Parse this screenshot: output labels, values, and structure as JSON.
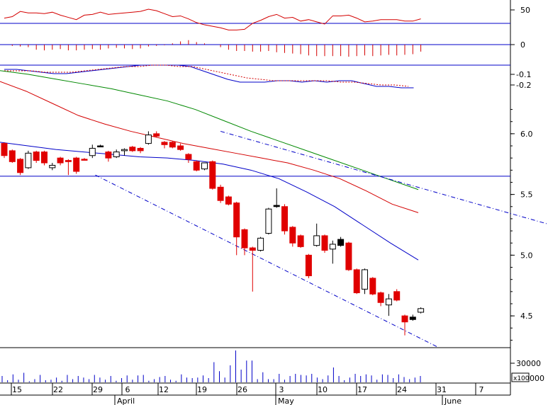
{
  "chart_data": {
    "type": "candlestick",
    "x_axis": {
      "day_labels": [
        "15",
        "22",
        "29",
        "6",
        "12",
        "19",
        "26",
        "3",
        "10",
        "17",
        "24",
        "31",
        "7"
      ],
      "month_labels": [
        "April",
        "May",
        "June"
      ]
    },
    "candles": [
      {
        "o": 5.92,
        "h": 5.93,
        "l": 5.8,
        "c": 5.82,
        "color": "red"
      },
      {
        "o": 5.86,
        "h": 5.87,
        "l": 5.76,
        "c": 5.77,
        "color": "red"
      },
      {
        "o": 5.79,
        "h": 5.8,
        "l": 5.66,
        "c": 5.68,
        "color": "red"
      },
      {
        "o": 5.72,
        "h": 5.86,
        "l": 5.71,
        "c": 5.84,
        "color": "white"
      },
      {
        "o": 5.85,
        "h": 5.86,
        "l": 5.76,
        "c": 5.78,
        "color": "red"
      },
      {
        "o": 5.85,
        "h": 5.86,
        "l": 5.74,
        "c": 5.76,
        "color": "red"
      },
      {
        "o": 5.74,
        "h": 5.76,
        "l": 5.7,
        "c": 5.72,
        "color": "white"
      },
      {
        "o": 5.8,
        "h": 5.81,
        "l": 5.74,
        "c": 5.76,
        "color": "red"
      },
      {
        "o": 5.77,
        "h": 5.79,
        "l": 5.66,
        "c": 5.78,
        "color": "red"
      },
      {
        "o": 5.8,
        "h": 5.81,
        "l": 5.67,
        "c": 5.69,
        "color": "red"
      },
      {
        "o": 5.79,
        "h": 5.8,
        "l": 5.78,
        "c": 5.79,
        "color": "red"
      },
      {
        "o": 5.82,
        "h": 5.91,
        "l": 5.8,
        "c": 5.88,
        "color": "white"
      },
      {
        "o": 5.9,
        "h": 5.91,
        "l": 5.89,
        "c": 5.9,
        "color": "black"
      },
      {
        "o": 5.85,
        "h": 5.86,
        "l": 5.77,
        "c": 5.8,
        "color": "red"
      },
      {
        "o": 5.81,
        "h": 5.87,
        "l": 5.8,
        "c": 5.85,
        "color": "white"
      },
      {
        "o": 5.86,
        "h": 5.88,
        "l": 5.82,
        "c": 5.87,
        "color": "white"
      },
      {
        "o": 5.89,
        "h": 5.9,
        "l": 5.85,
        "c": 5.86,
        "color": "red"
      },
      {
        "o": 5.88,
        "h": 5.89,
        "l": 5.84,
        "c": 5.86,
        "color": "red"
      },
      {
        "o": 5.92,
        "h": 6.02,
        "l": 5.91,
        "c": 5.99,
        "color": "white"
      },
      {
        "o": 6.0,
        "h": 6.02,
        "l": 5.97,
        "c": 5.98,
        "color": "red"
      },
      {
        "o": 5.93,
        "h": 5.94,
        "l": 5.88,
        "c": 5.91,
        "color": "red"
      },
      {
        "o": 5.93,
        "h": 5.94,
        "l": 5.88,
        "c": 5.89,
        "color": "red"
      },
      {
        "o": 5.9,
        "h": 5.92,
        "l": 5.86,
        "c": 5.87,
        "color": "red"
      },
      {
        "o": 5.83,
        "h": 5.84,
        "l": 5.76,
        "c": 5.79,
        "color": "red"
      },
      {
        "o": 5.77,
        "h": 5.78,
        "l": 5.69,
        "c": 5.7,
        "color": "red"
      },
      {
        "o": 5.71,
        "h": 5.76,
        "l": 5.7,
        "c": 5.76,
        "color": "white"
      },
      {
        "o": 5.77,
        "h": 5.78,
        "l": 5.54,
        "c": 5.55,
        "color": "red"
      },
      {
        "o": 5.56,
        "h": 5.58,
        "l": 5.43,
        "c": 5.45,
        "color": "red"
      },
      {
        "o": 5.48,
        "h": 5.49,
        "l": 5.41,
        "c": 5.42,
        "color": "red"
      },
      {
        "o": 5.43,
        "h": 5.44,
        "l": 5.0,
        "c": 5.15,
        "color": "red"
      },
      {
        "o": 5.21,
        "h": 5.22,
        "l": 5.0,
        "c": 5.06,
        "color": "red"
      },
      {
        "o": 5.06,
        "h": 5.07,
        "l": 4.7,
        "c": 5.04,
        "color": "red"
      },
      {
        "o": 5.04,
        "h": 5.15,
        "l": 5.03,
        "c": 5.14,
        "color": "white"
      },
      {
        "o": 5.18,
        "h": 5.39,
        "l": 5.17,
        "c": 5.38,
        "color": "white"
      },
      {
        "o": 5.4,
        "h": 5.55,
        "l": 5.39,
        "c": 5.41,
        "color": "black"
      },
      {
        "o": 5.4,
        "h": 5.42,
        "l": 5.17,
        "c": 5.2,
        "color": "red"
      },
      {
        "o": 5.23,
        "h": 5.24,
        "l": 5.07,
        "c": 5.1,
        "color": "red"
      },
      {
        "o": 5.16,
        "h": 5.17,
        "l": 5.06,
        "c": 5.07,
        "color": "red"
      },
      {
        "o": 5.0,
        "h": 5.01,
        "l": 4.81,
        "c": 4.83,
        "color": "red"
      },
      {
        "o": 5.08,
        "h": 5.26,
        "l": 5.07,
        "c": 5.16,
        "color": "white"
      },
      {
        "o": 5.16,
        "h": 5.17,
        "l": 5.02,
        "c": 5.04,
        "color": "red"
      },
      {
        "o": 5.05,
        "h": 5.12,
        "l": 4.93,
        "c": 5.09,
        "color": "white"
      },
      {
        "o": 5.08,
        "h": 5.15,
        "l": 5.07,
        "c": 5.13,
        "color": "black"
      },
      {
        "o": 5.1,
        "h": 5.11,
        "l": 4.87,
        "c": 4.88,
        "color": "red"
      },
      {
        "o": 4.88,
        "h": 4.89,
        "l": 4.68,
        "c": 4.69,
        "color": "red"
      },
      {
        "o": 4.72,
        "h": 4.89,
        "l": 4.68,
        "c": 4.88,
        "color": "white"
      },
      {
        "o": 4.81,
        "h": 4.82,
        "l": 4.67,
        "c": 4.68,
        "color": "red"
      },
      {
        "o": 4.69,
        "h": 4.7,
        "l": 4.58,
        "c": 4.61,
        "color": "red"
      },
      {
        "o": 4.64,
        "h": 4.68,
        "l": 4.5,
        "c": 4.59,
        "color": "white"
      },
      {
        "o": 4.7,
        "h": 4.72,
        "l": 4.62,
        "c": 4.63,
        "color": "red"
      },
      {
        "o": 4.5,
        "h": 4.51,
        "l": 4.34,
        "c": 4.45,
        "color": "red"
      },
      {
        "o": 4.49,
        "h": 4.51,
        "l": 4.46,
        "c": 4.47,
        "color": "black"
      },
      {
        "o": 4.53,
        "h": 4.57,
        "l": 4.52,
        "c": 4.56,
        "color": "white"
      }
    ],
    "price_axis": {
      "ticks": [
        "6.0",
        "5.5",
        "5.0",
        "4.5"
      ],
      "range": [
        4.25,
        6.25
      ]
    },
    "moving_averages": [
      {
        "color": "#0000c8",
        "points": [
          5.93,
          5.9,
          5.87,
          5.85,
          5.83,
          5.81,
          5.8,
          5.78,
          5.75,
          5.7,
          5.63,
          5.52,
          5.4,
          5.25,
          5.1,
          4.96
        ]
      },
      {
        "color": "#d40000",
        "points": [
          6.43,
          6.35,
          6.25,
          6.15,
          6.08,
          6.02,
          5.97,
          5.92,
          5.88,
          5.84,
          5.8,
          5.76,
          5.7,
          5.63,
          5.53,
          5.42,
          5.35
        ]
      },
      {
        "color": "#008800",
        "points": [
          6.52,
          6.49,
          6.45,
          6.41,
          6.37,
          6.32,
          6.27,
          6.2,
          6.11,
          6.02,
          5.94,
          5.86,
          5.78,
          5.7,
          5.62,
          5.54
        ]
      }
    ],
    "price_level_line": 5.65,
    "trend_channel": {
      "upper": [
        [
          27,
          6.02
        ],
        [
          89,
          4.53
        ]
      ],
      "lower": [
        [
          16.5,
          5.66
        ],
        [
          75,
          4.24
        ]
      ]
    },
    "rsi": {
      "axis_ticks": [
        "50"
      ],
      "level": 30,
      "color": "#d40000",
      "values": [
        38,
        40,
        47,
        45,
        45,
        44,
        46,
        42,
        39,
        36,
        42,
        43,
        46,
        43,
        44,
        45,
        46,
        47,
        50,
        48,
        44,
        40,
        41,
        37,
        32,
        29,
        27,
        25,
        22,
        22,
        23,
        31,
        35,
        40,
        43,
        38,
        39,
        34,
        36,
        33,
        30,
        41,
        41,
        42,
        38,
        33,
        34,
        36,
        36,
        36,
        34,
        34,
        37
      ]
    },
    "momentum": {
      "axis_ticks": [
        "0"
      ],
      "color": "#d40000",
      "values": [
        0,
        -2,
        -3,
        -4,
        -8,
        -9,
        -8,
        -7,
        -9,
        -9,
        -8,
        -7,
        -8,
        -6,
        -5,
        -6,
        -7,
        -6,
        -3,
        -2,
        -1,
        2,
        5,
        7,
        4,
        2,
        0,
        -4,
        -8,
        -10,
        -10,
        -11,
        -11,
        -10,
        -12,
        -13,
        -14,
        -15,
        -17,
        -18,
        -18,
        -18,
        -18,
        -19,
        -18,
        -17,
        -18,
        -17,
        -16,
        -17,
        -16,
        -15,
        -11
      ]
    },
    "macd": {
      "axis_ticks": [
        "-0.1",
        "-0.2"
      ],
      "level": -0.06,
      "macd": {
        "color": "#0000c8",
        "values": [
          -0.09,
          -0.09,
          -0.1,
          -0.11,
          -0.12,
          -0.12,
          -0.11,
          -0.1,
          -0.09,
          -0.08,
          -0.07,
          -0.06,
          -0.06,
          -0.06,
          -0.06,
          -0.07,
          -0.1,
          -0.13,
          -0.16,
          -0.18,
          -0.18,
          -0.18,
          -0.17,
          -0.17,
          -0.18,
          -0.17,
          -0.18,
          -0.17,
          -0.17,
          -0.19,
          -0.21,
          -0.21,
          -0.22,
          -0.22
        ]
      },
      "signal": {
        "color": "#d40000",
        "values": [
          -0.1,
          -0.1,
          -0.1,
          -0.11,
          -0.11,
          -0.11,
          -0.1,
          -0.09,
          -0.08,
          -0.07,
          -0.07,
          -0.06,
          -0.06,
          -0.07,
          -0.07,
          -0.09,
          -0.11,
          -0.13,
          -0.15,
          -0.16,
          -0.17,
          -0.17,
          -0.17,
          -0.17,
          -0.17,
          -0.18,
          -0.18,
          -0.19,
          -0.2,
          -0.2,
          -0.21
        ]
      }
    },
    "volume": {
      "axis_ticks": [
        "30000",
        "0000"
      ],
      "unit_label": "x100",
      "color": "#0000c8",
      "values": [
        12000,
        4000,
        15000,
        5000,
        18000,
        2000,
        6000,
        14000,
        4000,
        5000,
        9000,
        3000,
        14000,
        6000,
        12000,
        9000,
        6000,
        14000,
        9000,
        5000,
        12000,
        3000,
        8000,
        13000,
        5000,
        13000,
        14000,
        3000,
        6000,
        10000,
        12000,
        5000,
        3000,
        15000,
        9000,
        8000,
        9000,
        13000,
        8000,
        38000,
        21000,
        9000,
        32000,
        60000,
        24000,
        41000,
        41000,
        6000,
        19000,
        6000,
        6000,
        16000,
        5000,
        12000,
        16000,
        14000,
        13000,
        16000,
        9000,
        6000,
        13000,
        28000,
        12000,
        4000,
        9000,
        16000,
        12000,
        15000,
        13000,
        5000,
        15000,
        14000,
        8000,
        15000,
        10000,
        6000,
        9000,
        12000
      ]
    }
  }
}
